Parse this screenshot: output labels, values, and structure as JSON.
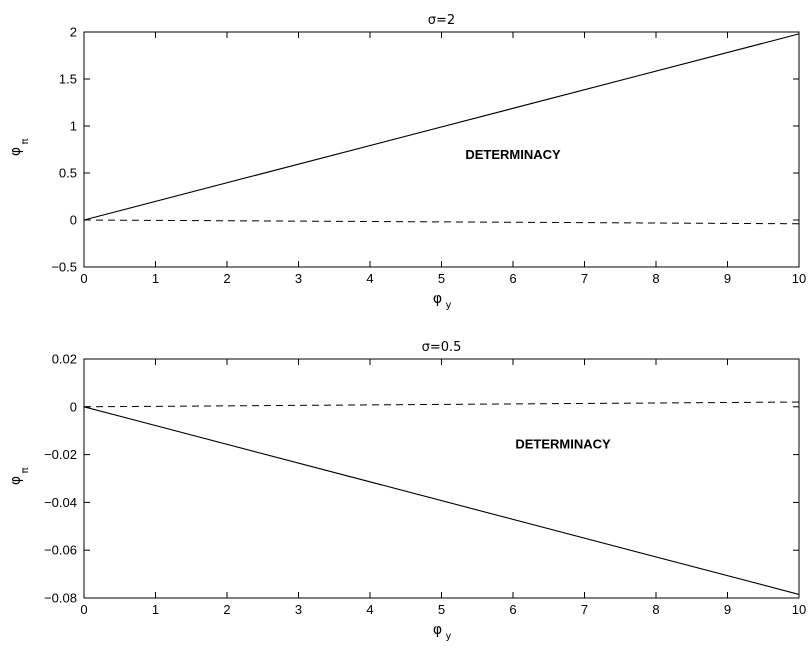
{
  "chart_data": [
    {
      "type": "line",
      "title": "σ=2",
      "xlabel": "φ",
      "xlabel_sub": "y",
      "ylabel": "φ",
      "ylabel_sub": "π",
      "xlim": [
        0,
        10
      ],
      "ylim": [
        -0.5,
        2
      ],
      "xticks": [
        0,
        1,
        2,
        3,
        4,
        5,
        6,
        7,
        8,
        9,
        10
      ],
      "yticks": [
        -0.5,
        0,
        0.5,
        1,
        1.5,
        2
      ],
      "ytick_labels": [
        "−0.5",
        "0",
        "0.5",
        "1",
        "1.5",
        "2"
      ],
      "grid": false,
      "annotation": {
        "text": "DETERMINACY",
        "x": 6.0,
        "y": 0.65
      },
      "series": [
        {
          "style": "solid",
          "x": [
            0,
            10
          ],
          "y": [
            0,
            1.98
          ]
        },
        {
          "style": "dashed",
          "x": [
            0,
            10
          ],
          "y": [
            0,
            -0.04
          ]
        }
      ]
    },
    {
      "type": "line",
      "title": "σ=0.5",
      "xlabel": "φ",
      "xlabel_sub": "y",
      "ylabel": "φ",
      "ylabel_sub": "π",
      "xlim": [
        0,
        10
      ],
      "ylim": [
        -0.08,
        0.02
      ],
      "xticks": [
        0,
        1,
        2,
        3,
        4,
        5,
        6,
        7,
        8,
        9,
        10
      ],
      "yticks": [
        -0.08,
        -0.06,
        -0.04,
        -0.02,
        0,
        0.02
      ],
      "ytick_labels": [
        "−0.08",
        "−0.06",
        "−0.04",
        "−0.02",
        "0",
        "0.02"
      ],
      "grid": false,
      "annotation": {
        "text": "DETERMINACY",
        "x": 6.7,
        "y": -0.0175
      },
      "series": [
        {
          "style": "solid",
          "x": [
            0,
            10
          ],
          "y": [
            0,
            -0.0785
          ]
        },
        {
          "style": "dashed",
          "x": [
            0,
            10
          ],
          "y": [
            0,
            0.002
          ]
        }
      ]
    }
  ]
}
